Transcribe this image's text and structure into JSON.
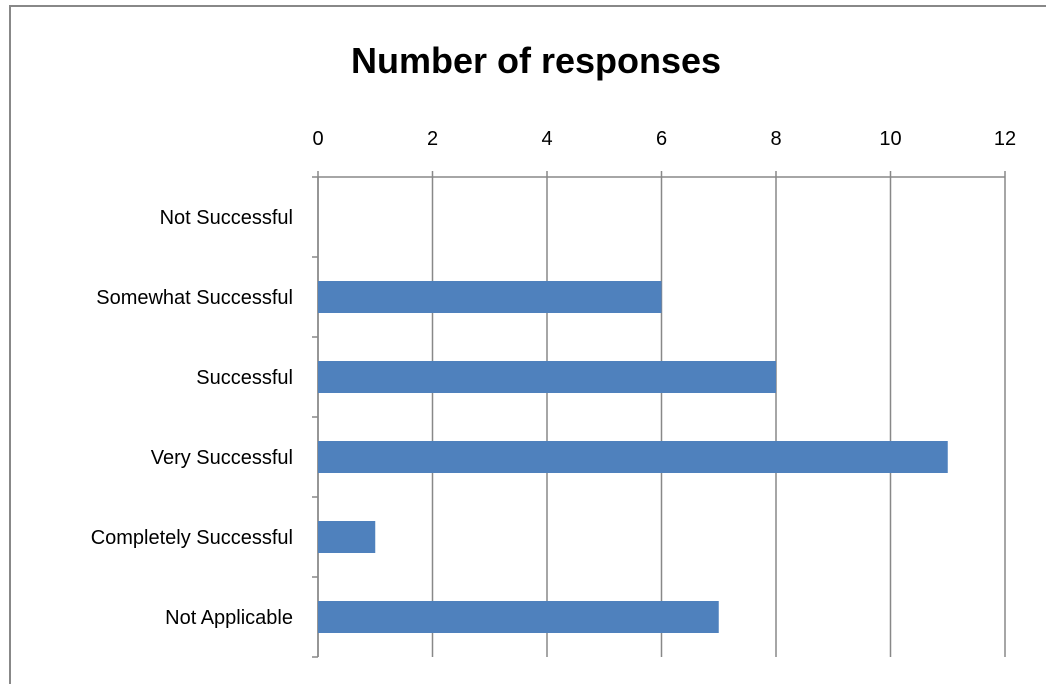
{
  "chart_data": {
    "type": "bar",
    "orientation": "horizontal",
    "title": "Number of responses",
    "categories": [
      "Not Successful",
      "Somewhat Successful",
      "Successful",
      "Very Successful",
      "Completely Successful",
      "Not Applicable"
    ],
    "values": [
      0,
      6,
      8,
      11,
      1,
      7
    ],
    "xlim": [
      0,
      12
    ],
    "x_ticks": [
      0,
      2,
      4,
      6,
      8,
      10,
      12
    ],
    "x_axis_position": "top",
    "grid": "vertical major gridlines",
    "legend": "none",
    "bar_color": "#4F81BD"
  },
  "colors": {
    "grid": "#888888",
    "frame": "#888888",
    "text": "#000000"
  }
}
